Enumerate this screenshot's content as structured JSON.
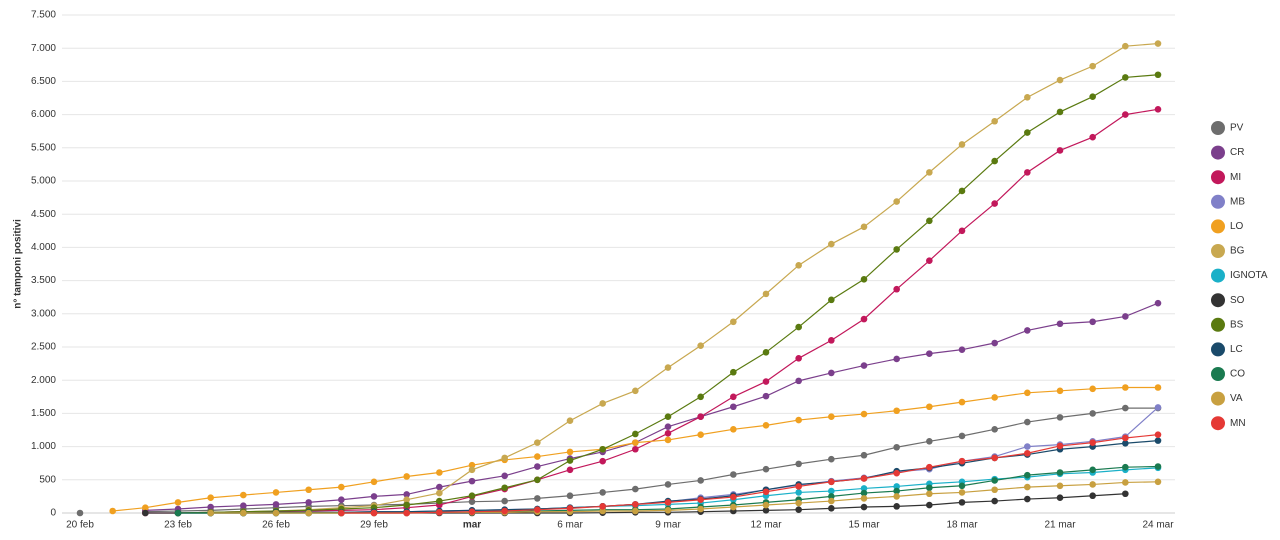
{
  "chart_data": {
    "type": "line",
    "y_label": "n° tamponi positivi",
    "categories": [
      "20 feb",
      null,
      null,
      "23 feb",
      null,
      null,
      "26 feb",
      null,
      null,
      "29 feb",
      null,
      null,
      "mar",
      null,
      null,
      "6 mar",
      null,
      null,
      "9 mar",
      null,
      null,
      "12 mar",
      null,
      null,
      "15 mar",
      null,
      null,
      "18 mar",
      null,
      null,
      "21 mar",
      null,
      null,
      "24 mar"
    ],
    "ylim": [
      0,
      7500
    ],
    "yticks": [
      0,
      500,
      {
        "value": 1000,
        "label": "1.000"
      },
      {
        "value": 1500,
        "label": "1.500"
      },
      {
        "value": 2000,
        "label": "2.000"
      },
      {
        "value": 2500,
        "label": "2.500"
      },
      {
        "value": 3000,
        "label": "3.000"
      },
      {
        "value": 3500,
        "label": "3.500"
      },
      {
        "value": 4000,
        "label": "4.000"
      },
      {
        "value": 4500,
        "label": "4.500"
      },
      {
        "value": 5000,
        "label": "5.000"
      },
      {
        "value": 5500,
        "label": "5.500"
      },
      {
        "value": 6000,
        "label": "6.000"
      },
      {
        "value": 6500,
        "label": "6.500"
      },
      {
        "value": 7000,
        "label": "7.000"
      },
      {
        "value": 7500,
        "label": "7.500"
      }
    ],
    "grid": true,
    "legend": "right",
    "series": [
      {
        "name": "PV",
        "color": "#6d6d6d",
        "values": [
          0,
          null,
          20,
          30,
          40,
          60,
          80,
          100,
          110,
          120,
          130,
          150,
          170,
          180,
          220,
          260,
          310,
          360,
          430,
          490,
          580,
          660,
          740,
          810,
          870,
          990,
          1080,
          1160,
          1260,
          1370,
          1440,
          1500,
          1580,
          1580
        ]
      },
      {
        "name": "CR",
        "color": "#7b3f8c",
        "values": [
          null,
          null,
          40,
          60,
          90,
          110,
          130,
          160,
          200,
          250,
          280,
          390,
          480,
          560,
          700,
          820,
          920,
          1060,
          1300,
          1450,
          1600,
          1760,
          1990,
          2110,
          2220,
          2320,
          2400,
          2460,
          2560,
          2750,
          2850,
          2880,
          2960,
          3160
        ]
      },
      {
        "name": "MI",
        "color": "#c2185b",
        "values": [
          null,
          null,
          0,
          0,
          10,
          20,
          20,
          30,
          40,
          50,
          80,
          120,
          250,
          360,
          500,
          650,
          780,
          960,
          1200,
          1450,
          1750,
          1980,
          2330,
          2600,
          2920,
          3370,
          3800,
          4250,
          4660,
          5130,
          5460,
          5660,
          6000,
          6080
        ]
      },
      {
        "name": "MB",
        "color": "#8080c8",
        "values": [
          null,
          null,
          null,
          null,
          null,
          0,
          0,
          10,
          10,
          20,
          20,
          30,
          40,
          50,
          60,
          80,
          100,
          130,
          170,
          230,
          280,
          350,
          420,
          480,
          530,
          620,
          660,
          780,
          850,
          1000,
          1030,
          1080,
          1150,
          1590
        ]
      },
      {
        "name": "LO",
        "color": "#f0a020",
        "values": [
          null,
          30,
          80,
          160,
          230,
          270,
          310,
          350,
          390,
          470,
          550,
          610,
          720,
          800,
          850,
          920,
          960,
          1060,
          1100,
          1180,
          1260,
          1320,
          1400,
          1450,
          1490,
          1540,
          1600,
          1670,
          1740,
          1810,
          1840,
          1870,
          1890,
          1890
        ]
      },
      {
        "name": "BG",
        "color": "#c8a850",
        "values": [
          null,
          null,
          null,
          0,
          10,
          20,
          30,
          50,
          80,
          110,
          200,
          300,
          650,
          830,
          1060,
          1390,
          1650,
          1840,
          2190,
          2520,
          2880,
          3300,
          3730,
          4050,
          4310,
          4690,
          5130,
          5550,
          5900,
          6260,
          6520,
          6730,
          7030,
          7070
        ]
      },
      {
        "name": "IGNOTA",
        "color": "#1ab0c8",
        "values": [
          null,
          null,
          null,
          null,
          null,
          null,
          null,
          null,
          null,
          null,
          null,
          null,
          30,
          40,
          60,
          80,
          100,
          110,
          130,
          150,
          200,
          260,
          310,
          330,
          370,
          400,
          440,
          470,
          510,
          540,
          590,
          610,
          650,
          680
        ]
      },
      {
        "name": "SO",
        "color": "#333333",
        "values": [
          null,
          null,
          0,
          0,
          0,
          0,
          0,
          0,
          0,
          0,
          0,
          0,
          0,
          0,
          0,
          0,
          5,
          10,
          10,
          20,
          30,
          40,
          50,
          70,
          90,
          100,
          120,
          160,
          180,
          210,
          230,
          260,
          290,
          null
        ]
      },
      {
        "name": "BS",
        "color": "#5a7a10",
        "values": [
          null,
          null,
          null,
          0,
          10,
          20,
          30,
          40,
          60,
          80,
          120,
          180,
          260,
          380,
          500,
          790,
          960,
          1190,
          1450,
          1750,
          2120,
          2420,
          2800,
          3210,
          3520,
          3970,
          4400,
          4850,
          5300,
          5730,
          6040,
          6270,
          6560,
          6600
        ]
      },
      {
        "name": "LC",
        "color": "#1a4a6a",
        "values": [
          null,
          null,
          null,
          0,
          0,
          0,
          10,
          10,
          10,
          20,
          20,
          30,
          40,
          50,
          60,
          80,
          100,
          130,
          180,
          210,
          260,
          350,
          430,
          470,
          520,
          630,
          680,
          750,
          830,
          880,
          960,
          1000,
          1050,
          1090
        ]
      },
      {
        "name": "CO",
        "color": "#1a7a50",
        "values": [
          null,
          null,
          null,
          0,
          0,
          0,
          0,
          0,
          0,
          5,
          5,
          10,
          10,
          20,
          30,
          40,
          50,
          50,
          60,
          90,
          120,
          160,
          200,
          250,
          300,
          330,
          380,
          410,
          490,
          570,
          610,
          650,
          690,
          700
        ]
      },
      {
        "name": "VA",
        "color": "#c8a040",
        "values": [
          null,
          null,
          null,
          null,
          0,
          0,
          0,
          0,
          0,
          0,
          0,
          10,
          10,
          10,
          20,
          20,
          30,
          30,
          40,
          60,
          90,
          120,
          150,
          180,
          220,
          250,
          290,
          310,
          350,
          390,
          410,
          430,
          460,
          470
        ]
      },
      {
        "name": "MN",
        "color": "#e53935",
        "values": [
          null,
          null,
          null,
          null,
          null,
          null,
          null,
          null,
          0,
          0,
          0,
          10,
          20,
          30,
          50,
          70,
          100,
          130,
          160,
          200,
          240,
          320,
          400,
          470,
          520,
          600,
          690,
          780,
          830,
          900,
          1010,
          1060,
          1130,
          1180
        ]
      }
    ]
  }
}
